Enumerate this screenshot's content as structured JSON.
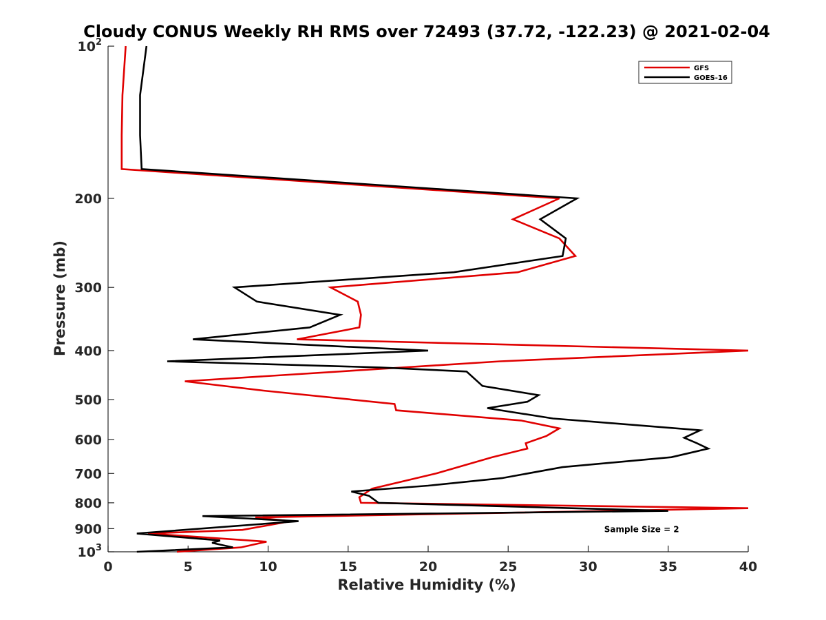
{
  "chart_data": {
    "type": "line",
    "title": "Cloudy CONUS Weekly RH RMS over 72493 (37.72, -122.23) @ 2021-02-04",
    "xlabel": "Relative Humidity (%)",
    "ylabel": "Pressure (mb)",
    "xlim": [
      0,
      40
    ],
    "ylim": [
      100,
      1000
    ],
    "y_scale": "log",
    "y_reversed": true,
    "grid": false,
    "legend_position": "top-right",
    "x_ticks": [
      0,
      5,
      10,
      15,
      20,
      25,
      30,
      35,
      40
    ],
    "x_tick_labels": [
      "0",
      "5",
      "10",
      "15",
      "20",
      "25",
      "30",
      "35",
      "40"
    ],
    "y_ticks": [
      100,
      200,
      300,
      400,
      500,
      600,
      700,
      800,
      900,
      1000
    ],
    "y_tick_labels": [
      {
        "base": "10",
        "exp": "2"
      },
      {
        "base": "200",
        "exp": ""
      },
      {
        "base": "300",
        "exp": ""
      },
      {
        "base": "400",
        "exp": ""
      },
      {
        "base": "500",
        "exp": ""
      },
      {
        "base": "600",
        "exp": ""
      },
      {
        "base": "700",
        "exp": ""
      },
      {
        "base": "800",
        "exp": ""
      },
      {
        "base": "900",
        "exp": ""
      },
      {
        "base": "10",
        "exp": "3"
      }
    ],
    "series": [
      {
        "name": "GFS",
        "color": "#e00000",
        "points": [
          [
            1.1,
            100
          ],
          [
            0.9,
            125
          ],
          [
            0.85,
            150
          ],
          [
            0.85,
            175
          ],
          [
            28.2,
            200
          ],
          [
            25.3,
            220
          ],
          [
            28.2,
            240
          ],
          [
            29.2,
            260
          ],
          [
            25.6,
            280
          ],
          [
            13.9,
            300
          ],
          [
            15.6,
            320
          ],
          [
            15.8,
            340
          ],
          [
            15.7,
            360
          ],
          [
            11.8,
            380
          ],
          [
            40.0,
            400
          ],
          [
            24.5,
            420
          ],
          [
            4.8,
            460
          ],
          [
            9.7,
            480
          ],
          [
            17.9,
            510
          ],
          [
            18.0,
            525
          ],
          [
            25.8,
            550
          ],
          [
            28.2,
            570
          ],
          [
            27.4,
            590
          ],
          [
            26.1,
            610
          ],
          [
            26.2,
            625
          ],
          [
            24.0,
            650
          ],
          [
            20.5,
            700
          ],
          [
            16.5,
            750
          ],
          [
            15.7,
            780
          ],
          [
            15.8,
            800
          ],
          [
            40.0,
            820
          ],
          [
            31.5,
            830
          ],
          [
            9.2,
            855
          ],
          [
            11.4,
            870
          ],
          [
            8.4,
            905
          ],
          [
            2.5,
            920
          ],
          [
            9.9,
            955
          ],
          [
            8.3,
            980
          ],
          [
            4.3,
            1000
          ]
        ]
      },
      {
        "name": "GOES-16",
        "color": "#000000",
        "points": [
          [
            2.4,
            100
          ],
          [
            2.0,
            125
          ],
          [
            2.0,
            150
          ],
          [
            2.1,
            175
          ],
          [
            29.3,
            200
          ],
          [
            27.0,
            220
          ],
          [
            28.6,
            240
          ],
          [
            28.4,
            260
          ],
          [
            21.6,
            280
          ],
          [
            7.9,
            300
          ],
          [
            9.3,
            320
          ],
          [
            14.5,
            340
          ],
          [
            12.6,
            360
          ],
          [
            5.3,
            380
          ],
          [
            20.0,
            400
          ],
          [
            3.7,
            420
          ],
          [
            17.0,
            432
          ],
          [
            22.4,
            440
          ],
          [
            23.4,
            470
          ],
          [
            26.9,
            490
          ],
          [
            26.2,
            505
          ],
          [
            23.7,
            520
          ],
          [
            27.8,
            545
          ],
          [
            37.0,
            575
          ],
          [
            36.0,
            595
          ],
          [
            36.8,
            610
          ],
          [
            37.5,
            625
          ],
          [
            35.2,
            650
          ],
          [
            28.4,
            680
          ],
          [
            24.6,
            715
          ],
          [
            20.0,
            740
          ],
          [
            15.2,
            760
          ],
          [
            16.3,
            775
          ],
          [
            16.9,
            800
          ],
          [
            35.0,
            830
          ],
          [
            5.9,
            850
          ],
          [
            11.9,
            870
          ],
          [
            1.8,
            920
          ],
          [
            7.0,
            950
          ],
          [
            6.5,
            960
          ],
          [
            7.8,
            980
          ],
          [
            1.8,
            1000
          ]
        ]
      }
    ],
    "annotations": [
      {
        "text": "Sample Size = 2",
        "x": 31,
        "y": 900
      }
    ]
  }
}
